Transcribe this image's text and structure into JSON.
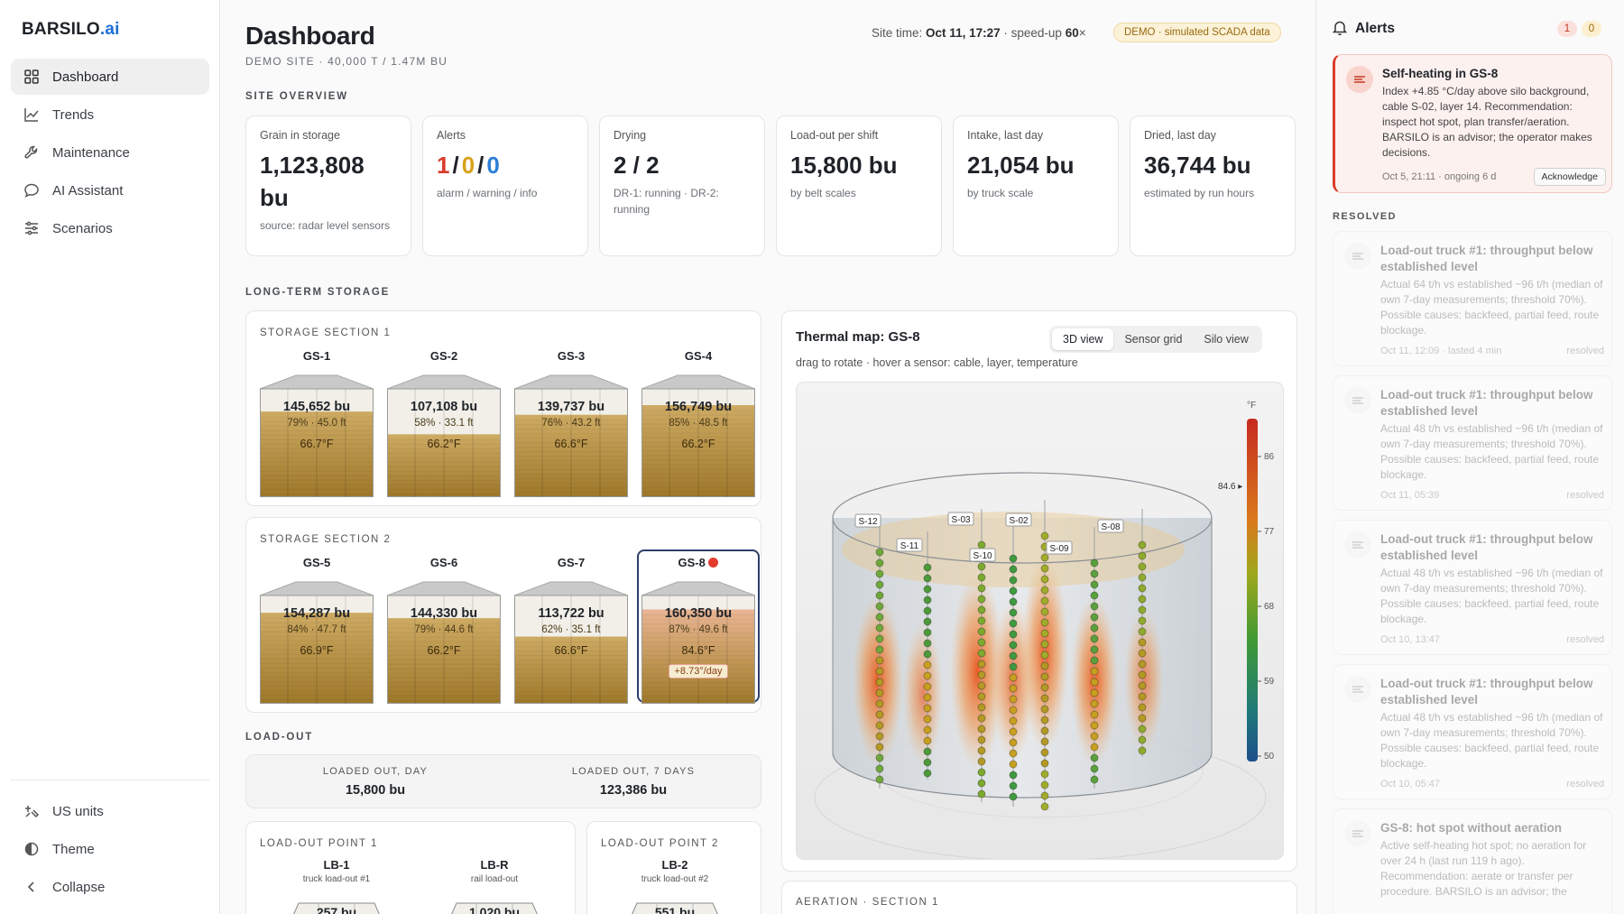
{
  "brand": {
    "name": "BARSILO",
    "suffix": ".ai"
  },
  "nav": [
    {
      "label": "Dashboard",
      "icon": "grid-icon",
      "active": true
    },
    {
      "label": "Trends",
      "icon": "chart-line-icon"
    },
    {
      "label": "Maintenance",
      "icon": "wrench-icon"
    },
    {
      "label": "AI Assistant",
      "icon": "chat-bubble-icon"
    },
    {
      "label": "Scenarios",
      "icon": "sliders-icon"
    }
  ],
  "nav_bottom": [
    {
      "label": "US units",
      "icon": "units-icon"
    },
    {
      "label": "Theme",
      "icon": "half-circle-icon"
    },
    {
      "label": "Collapse",
      "icon": "chevron-left-icon"
    }
  ],
  "header": {
    "title": "Dashboard",
    "subtitle": "DEMO SITE · 40,000 T / 1.47M BU",
    "site_time_label": "Site time:",
    "site_time": "Oct 11, 17:27",
    "speed_label": "· speed-up",
    "speed": "60",
    "speed_unit": "×",
    "badge": "DEMO · simulated SCADA data"
  },
  "site_overview": {
    "title": "SITE OVERVIEW",
    "kpis": [
      {
        "label": "Grain in storage",
        "value": "1,123,808",
        "unit": "bu",
        "note": "source: radar level sensors"
      },
      {
        "label": "Alerts",
        "alarm": "1",
        "warning": "0",
        "info": "0",
        "sep": "/",
        "note": "alarm / warning / info"
      },
      {
        "label": "Drying",
        "value": "2 / 2",
        "note": "DR-1: running · DR-2: running"
      },
      {
        "label": "Load-out per shift",
        "value": "15,800 bu",
        "note": "by belt scales"
      },
      {
        "label": "Intake, last day",
        "value": "21,054 bu",
        "note": "by truck scale"
      },
      {
        "label": "Dried, last day",
        "value": "36,744 bu",
        "note": "estimated by run hours"
      }
    ]
  },
  "long_term": {
    "title": "LONG-TERM STORAGE",
    "sections": [
      {
        "title": "STORAGE SECTION 1",
        "silos": [
          {
            "name": "GS-1",
            "bu": "145,652 bu",
            "pct": "79% · 45.0 ft",
            "temp": "66.7°F",
            "fill": 0.79
          },
          {
            "name": "GS-2",
            "bu": "107,108 bu",
            "pct": "58% · 33.1 ft",
            "temp": "66.2°F",
            "fill": 0.58
          },
          {
            "name": "GS-3",
            "bu": "139,737 bu",
            "pct": "76% · 43.2 ft",
            "temp": "66.6°F",
            "fill": 0.76
          },
          {
            "name": "GS-4",
            "bu": "156,749 bu",
            "pct": "85% · 48.5 ft",
            "temp": "66.2°F",
            "fill": 0.85
          }
        ]
      },
      {
        "title": "STORAGE SECTION 2",
        "silos": [
          {
            "name": "GS-5",
            "bu": "154,287 bu",
            "pct": "84% · 47.7 ft",
            "temp": "66.9°F",
            "fill": 0.84
          },
          {
            "name": "GS-6",
            "bu": "144,330 bu",
            "pct": "79% · 44.6 ft",
            "temp": "66.2°F",
            "fill": 0.79
          },
          {
            "name": "GS-7",
            "bu": "113,722 bu",
            "pct": "62% · 35.1 ft",
            "temp": "66.6°F",
            "fill": 0.62
          },
          {
            "name": "GS-8",
            "bu": "160,350 bu",
            "pct": "87% · 49.6 ft",
            "temp": "84.6°F",
            "fill": 0.87,
            "hot": true,
            "rate": "+8.73°/day"
          }
        ]
      }
    ]
  },
  "loadout": {
    "title": "LOAD-OUT",
    "day_label": "LOADED OUT, DAY",
    "day_value": "15,800 bu",
    "week_label": "LOADED OUT, 7 DAYS",
    "week_value": "123,386 bu",
    "points": [
      {
        "title": "LOAD-OUT POINT 1",
        "bins": [
          {
            "name": "LB-1",
            "desc": "truck load-out #1",
            "value": "257 bu"
          },
          {
            "name": "LB-R",
            "desc": "rail load-out",
            "value": "1,020 bu"
          }
        ]
      },
      {
        "title": "LOAD-OUT POINT 2",
        "bins": [
          {
            "name": "LB-2",
            "desc": "truck load-out #2",
            "value": "551 bu"
          }
        ]
      }
    ]
  },
  "thermal": {
    "title": "Thermal map: GS-8",
    "hint": "drag to rotate · hover a sensor: cable, layer, temperature",
    "tabs": [
      "3D view",
      "Sensor grid",
      "Silo view"
    ],
    "active_tab": "3D view",
    "scale_unit": "°F",
    "scale_ticks": [
      "86",
      "77",
      "68",
      "59",
      "50"
    ],
    "marker": "84.6",
    "cables": [
      "S-12",
      "S-11",
      "S-03",
      "S-10",
      "S-02",
      "S-09",
      "S-08"
    ]
  },
  "aeration": {
    "title": "AERATION · SECTION 1"
  },
  "alerts": {
    "title": "Alerts",
    "count_alarm": "1",
    "count_warning": "0",
    "active": {
      "title": "Self-heating in GS-8",
      "body": "Index +4.85 °C/day above silo background, cable S-02, layer 14. Recommendation: inspect hot spot, plan transfer/aeration. BARSILO is an advisor; the operator makes decisions.",
      "meta": "Oct 5, 21:11 · ongoing 6 d",
      "action": "Acknowledge"
    },
    "resolved_title": "RESOLVED",
    "resolved": [
      {
        "title": "Load-out truck #1: throughput below established level",
        "body": "Actual 64 t/h vs established ~96 t/h (median of own 7-day measurements; threshold 70%). Possible causes: backfeed, partial feed, route blockage.",
        "meta": "Oct 11, 12:09 · lasted 4 min",
        "status": "resolved"
      },
      {
        "title": "Load-out truck #1: throughput below established level",
        "body": "Actual 48 t/h vs established ~96 t/h (median of own 7-day measurements; threshold 70%). Possible causes: backfeed, partial feed, route blockage.",
        "meta": "Oct 11, 05:39",
        "status": "resolved"
      },
      {
        "title": "Load-out truck #1: throughput below established level",
        "body": "Actual 48 t/h vs established ~96 t/h (median of own 7-day measurements; threshold 70%). Possible causes: backfeed, partial feed, route blockage.",
        "meta": "Oct 10, 13:47",
        "status": "resolved"
      },
      {
        "title": "Load-out truck #1: throughput below established level",
        "body": "Actual 48 t/h vs established ~96 t/h (median of own 7-day measurements; threshold 70%). Possible causes: backfeed, partial feed, route blockage.",
        "meta": "Oct 10, 05:47",
        "status": "resolved"
      },
      {
        "title": "GS-8: hot spot without aeration",
        "body": "Active self-heating hot spot; no aeration for over 24 h (last run 119 h ago). Recommendation: aerate or transfer per procedure. BARSILO is an advisor; the",
        "meta": "",
        "status": ""
      }
    ]
  },
  "colors": {
    "alarm": "#d93b2b",
    "warning": "#d9a21a",
    "info": "#2d7fd6",
    "grain": "#b48a35",
    "accent": "#1d6fd6"
  }
}
